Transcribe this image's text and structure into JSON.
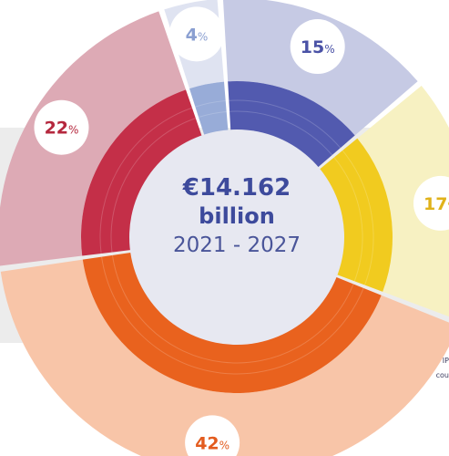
{
  "chart_data": {
    "type": "donut",
    "center": {
      "amount": "€14.162",
      "unit": "billion",
      "years": "2021 - 2027"
    },
    "segments": [
      {
        "value": 15,
        "label_num": "15",
        "label_pct": "%",
        "outer_color": "#c6cae4",
        "inner_color": "#525aaf",
        "label_color": "#4a52a6"
      },
      {
        "value": 17,
        "label_num": "17",
        "label_pct": "%",
        "outer_color": "#f7f1c2",
        "inner_color": "#f1cb1f",
        "label_color": "#e0b21a"
      },
      {
        "value": 42,
        "label_num": "42",
        "label_pct": "%",
        "outer_color": "#f8c5a8",
        "inner_color": "#e9621e",
        "label_color": "#e35c1f"
      },
      {
        "value": 22,
        "label_num": "22",
        "label_pct": "%",
        "outer_color": "#ddaab5",
        "inner_color": "#c42f48",
        "label_color": "#b5283e"
      },
      {
        "value": 4,
        "label_num": "4",
        "label_pct": "%",
        "outer_color": "#dfe3f1",
        "inner_color": "#98acd8",
        "label_color": "#8a9fd1"
      }
    ]
  },
  "footnote": "** IP\ncou"
}
